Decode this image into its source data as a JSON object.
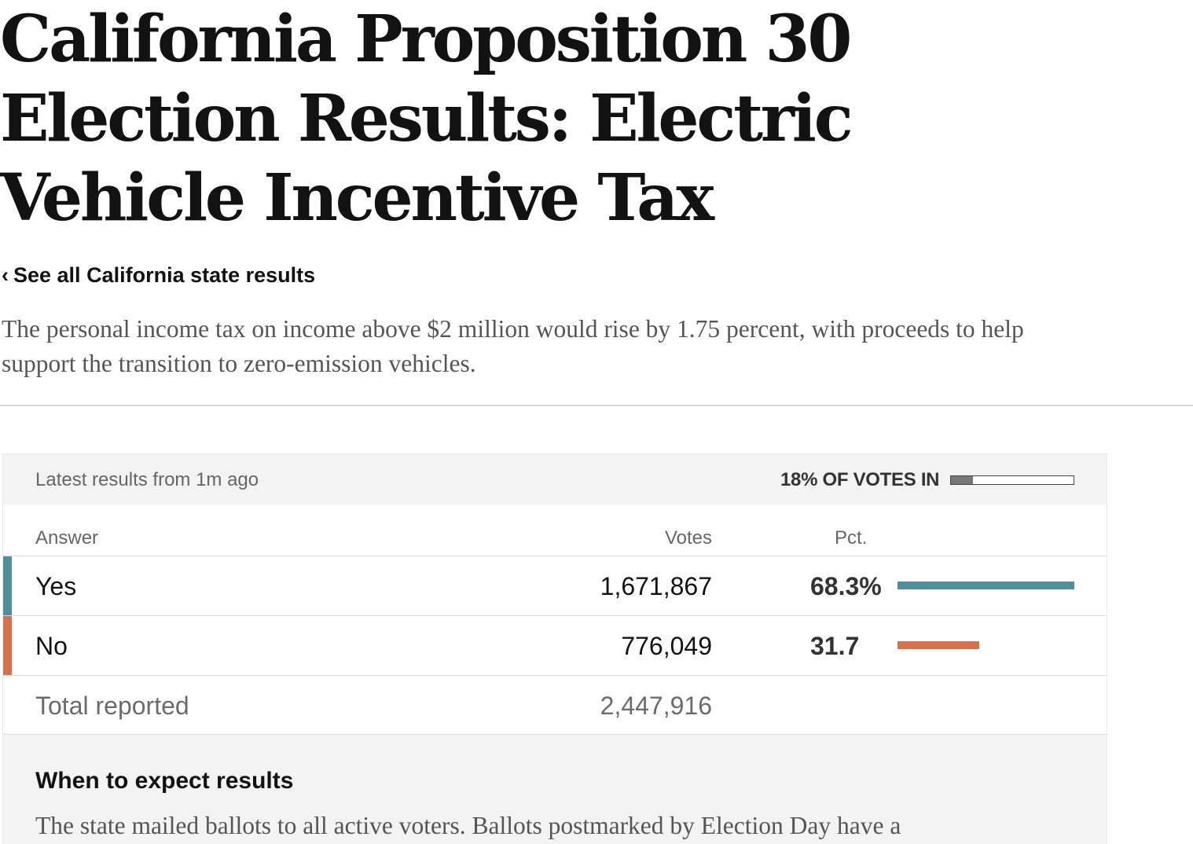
{
  "page": {
    "headline": "California Proposition 30 Election Results: Electric Vehicle Incentive Tax",
    "back_link": {
      "chevron": "‹",
      "label": "See all California state results",
      "icon": "chevron-left-icon"
    },
    "description": "The personal income tax on income above $2 million would rise by 1.75 percent, with proceeds to help support the transition to zero-emission vehicles."
  },
  "results": {
    "latest_label": "Latest results from 1m ago",
    "votes_in_label": "18% OF VOTES IN",
    "votes_in_fraction": 0.18,
    "columns": {
      "answer": "Answer",
      "votes": "Votes",
      "pct": "Pct."
    },
    "rows": [
      {
        "answer": "Yes",
        "votes": "1,671,867",
        "pct": "68.3%",
        "pct_value": 68.3,
        "color": "#4e919a"
      },
      {
        "answer": "No",
        "votes": "776,049",
        "pct": "31.7",
        "pct_value": 31.7,
        "color": "#d6714b"
      }
    ],
    "total": {
      "label": "Total reported",
      "votes": "2,447,916"
    }
  },
  "expect": {
    "title": "When to expect results",
    "text": "The state mailed ballots to all active voters. Ballots postmarked by Election Day have a"
  },
  "colors": {
    "yes": "#4e919a",
    "no": "#d6714b",
    "progress_fill": "#777777"
  }
}
